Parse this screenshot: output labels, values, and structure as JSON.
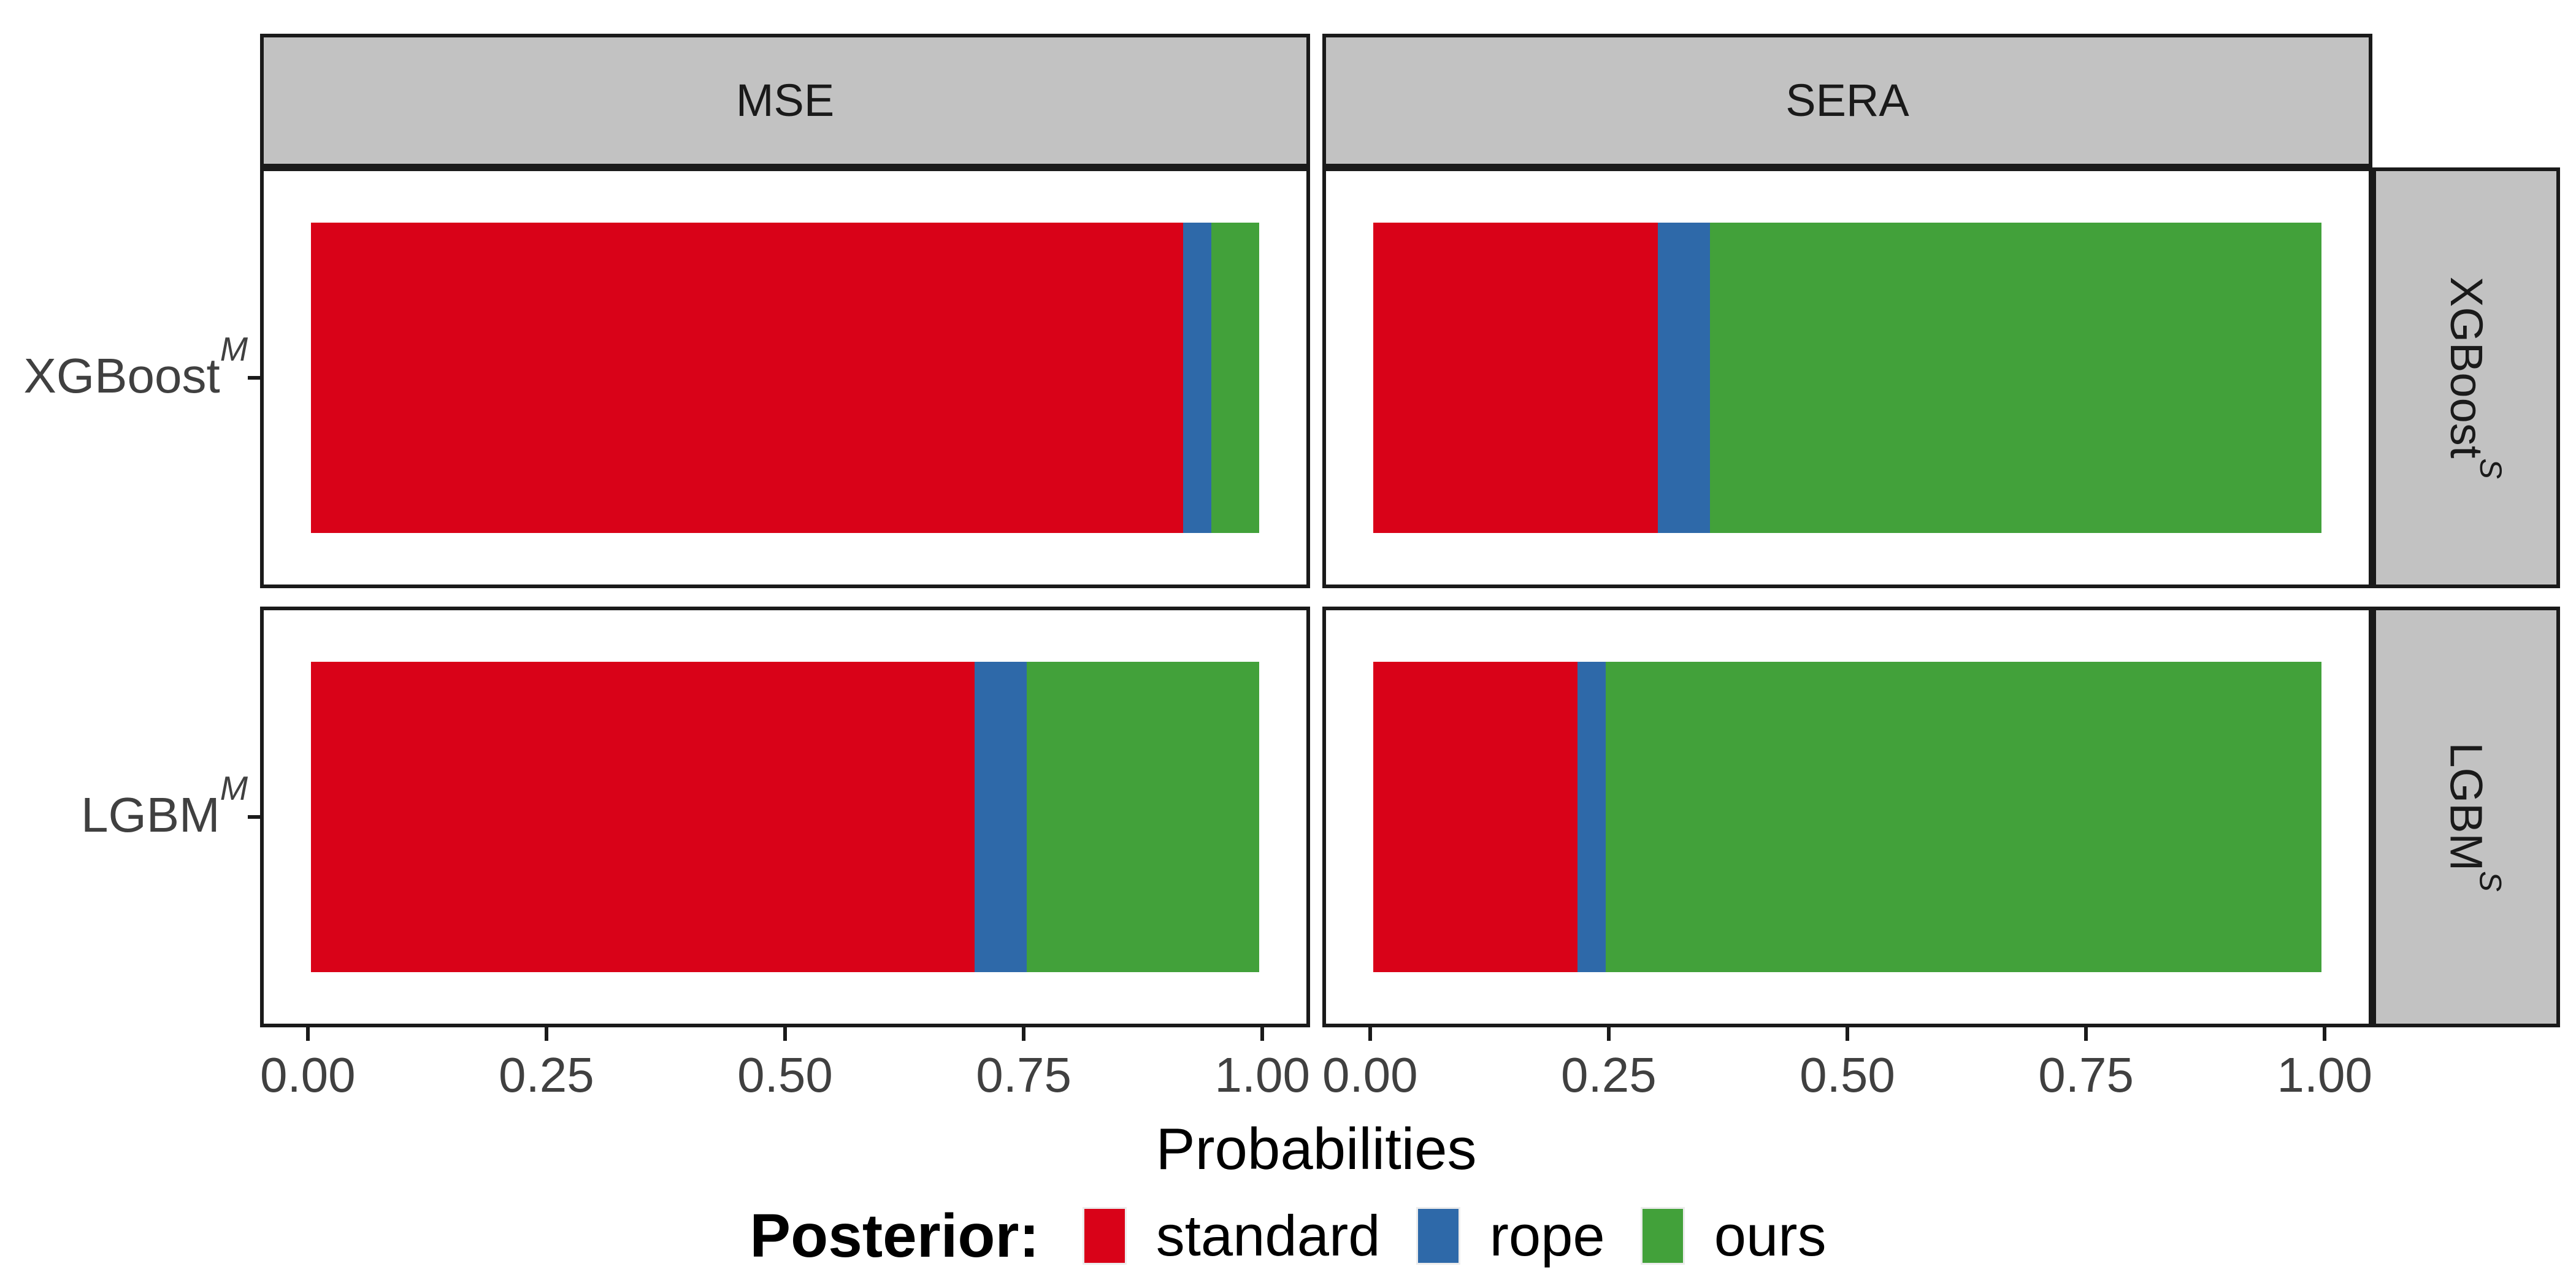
{
  "chart_data": {
    "type": "bar",
    "subtype": "horizontal-stacked-faceted",
    "title": "",
    "xlabel": "Probabilities",
    "ylabel": "",
    "xlim": [
      0,
      1
    ],
    "x_expansion": 0.05,
    "x_ticks": [
      0,
      0.25,
      0.5,
      0.75,
      1
    ],
    "x_tick_labels": [
      "0.00",
      "0.25",
      "0.50",
      "0.75",
      "1.00"
    ],
    "grid": false,
    "legend_position": "bottom",
    "facet_columns": [
      "MSE",
      "SERA"
    ],
    "facet_rows": [
      {
        "base": "XGBoost",
        "sup": "S"
      },
      {
        "base": "LGBM",
        "sup": "S"
      }
    ],
    "y_categories": [
      {
        "base": "XGBoost",
        "sup": "M"
      },
      {
        "base": "LGBM",
        "sup": "M"
      }
    ],
    "series": [
      "standard",
      "rope",
      "ours"
    ],
    "colors": {
      "standard": "#D90218",
      "rope": "#2E69A9",
      "ours": "#42A13A"
    },
    "panels": [
      {
        "facet_col": "MSE",
        "facet_row": "XGBoost^S",
        "category": "XGBoost^M",
        "segments": [
          {
            "name": "standard",
            "value": 0.92
          },
          {
            "name": "rope",
            "value": 0.03
          },
          {
            "name": "ours",
            "value": 0.05
          }
        ]
      },
      {
        "facet_col": "SERA",
        "facet_row": "XGBoost^S",
        "category": "XGBoost^M",
        "segments": [
          {
            "name": "standard",
            "value": 0.3
          },
          {
            "name": "rope",
            "value": 0.055
          },
          {
            "name": "ours",
            "value": 0.645
          }
        ]
      },
      {
        "facet_col": "MSE",
        "facet_row": "LGBM^S",
        "category": "LGBM^M",
        "segments": [
          {
            "name": "standard",
            "value": 0.7
          },
          {
            "name": "rope",
            "value": 0.055
          },
          {
            "name": "ours",
            "value": 0.245
          }
        ]
      },
      {
        "facet_col": "SERA",
        "facet_row": "LGBM^S",
        "category": "LGBM^M",
        "segments": [
          {
            "name": "standard",
            "value": 0.215
          },
          {
            "name": "rope",
            "value": 0.03
          },
          {
            "name": "ours",
            "value": 0.755
          }
        ]
      }
    ],
    "legend": {
      "title": "Posterior:",
      "items": [
        {
          "label": "standard",
          "color": "#D90218"
        },
        {
          "label": "rope",
          "color": "#2E69A9"
        },
        {
          "label": "ours",
          "color": "#42A13A"
        }
      ]
    }
  },
  "style": {
    "strip_background": "#C2C2C2",
    "panel_border": "#1A1A1A",
    "axis_text_color": "#404040"
  }
}
